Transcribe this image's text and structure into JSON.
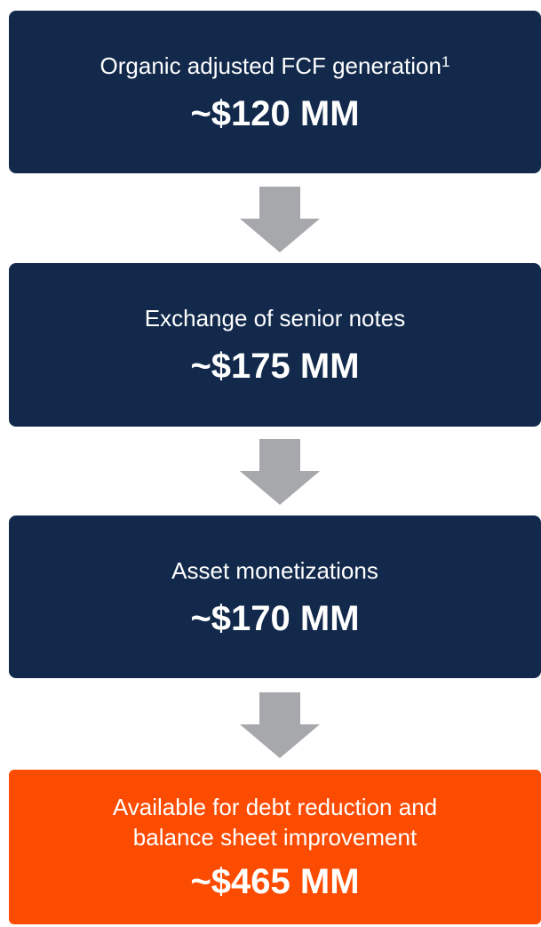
{
  "boxes": [
    {
      "label_lines": [
        "Organic adjusted FCF generation"
      ],
      "footnote": "1",
      "value": "~$120 MM"
    },
    {
      "label_lines": [
        "Exchange of senior notes"
      ],
      "value": "~$175 MM"
    },
    {
      "label_lines": [
        "Asset monetizations"
      ],
      "value": "~$170 MM"
    },
    {
      "label_lines": [
        "Available for debt reduction and",
        "balance sheet improvement"
      ],
      "value": "~$465 MM"
    }
  ]
}
